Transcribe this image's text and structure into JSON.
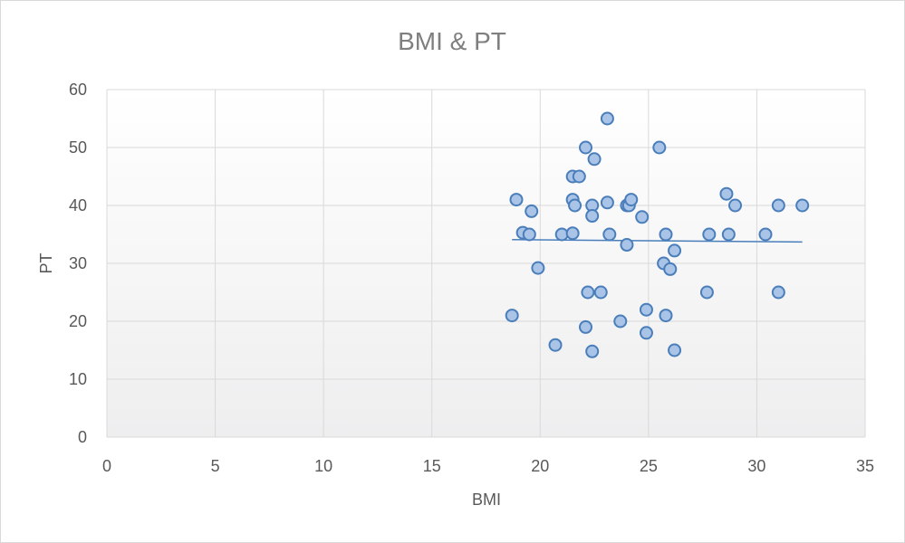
{
  "chart_data": {
    "type": "scatter",
    "title": "BMI & PT",
    "xlabel": "BMI",
    "ylabel": "PT",
    "xlim": [
      0,
      35
    ],
    "ylim": [
      0,
      60
    ],
    "xticks": [
      "0",
      "5",
      "10",
      "15",
      "20",
      "25",
      "30",
      "35"
    ],
    "yticks": [
      "0",
      "10",
      "20",
      "30",
      "40",
      "50",
      "60"
    ],
    "grid": true,
    "series": [
      {
        "marker_fill": "#a9c4e6",
        "marker_stroke": "#4a7ebb",
        "points": [
          [
            18.9,
            41
          ],
          [
            18.7,
            21
          ],
          [
            19.2,
            35.3
          ],
          [
            19.5,
            35
          ],
          [
            19.6,
            39
          ],
          [
            19.9,
            29.2
          ],
          [
            20.7,
            15.9
          ],
          [
            21.0,
            35
          ],
          [
            21.5,
            35.2
          ],
          [
            21.5,
            41
          ],
          [
            21.5,
            45
          ],
          [
            21.6,
            40
          ],
          [
            21.8,
            45
          ],
          [
            22.1,
            50
          ],
          [
            22.1,
            19
          ],
          [
            22.2,
            25
          ],
          [
            22.4,
            40
          ],
          [
            22.4,
            38.2
          ],
          [
            22.4,
            14.8
          ],
          [
            22.5,
            48
          ],
          [
            22.8,
            25
          ],
          [
            23.1,
            55
          ],
          [
            23.1,
            40.5
          ],
          [
            23.2,
            35
          ],
          [
            23.7,
            20
          ],
          [
            24.0,
            40
          ],
          [
            24.0,
            33.2
          ],
          [
            24.1,
            40
          ],
          [
            24.2,
            41
          ],
          [
            24.7,
            38
          ],
          [
            24.9,
            22
          ],
          [
            24.9,
            18
          ],
          [
            25.5,
            50
          ],
          [
            25.7,
            30
          ],
          [
            25.8,
            35
          ],
          [
            25.8,
            21
          ],
          [
            26.0,
            29
          ],
          [
            26.2,
            32.2
          ],
          [
            26.2,
            15
          ],
          [
            27.7,
            25
          ],
          [
            27.8,
            35
          ],
          [
            28.6,
            42
          ],
          [
            28.7,
            35
          ],
          [
            29.0,
            40
          ],
          [
            30.4,
            35
          ],
          [
            31.0,
            40
          ],
          [
            31.0,
            25
          ],
          [
            32.1,
            40
          ]
        ]
      }
    ],
    "trendline": {
      "type": "linear",
      "x": [
        18.7,
        32.1
      ],
      "y": [
        34.1,
        33.7
      ],
      "color": "#4a7ebb"
    }
  }
}
